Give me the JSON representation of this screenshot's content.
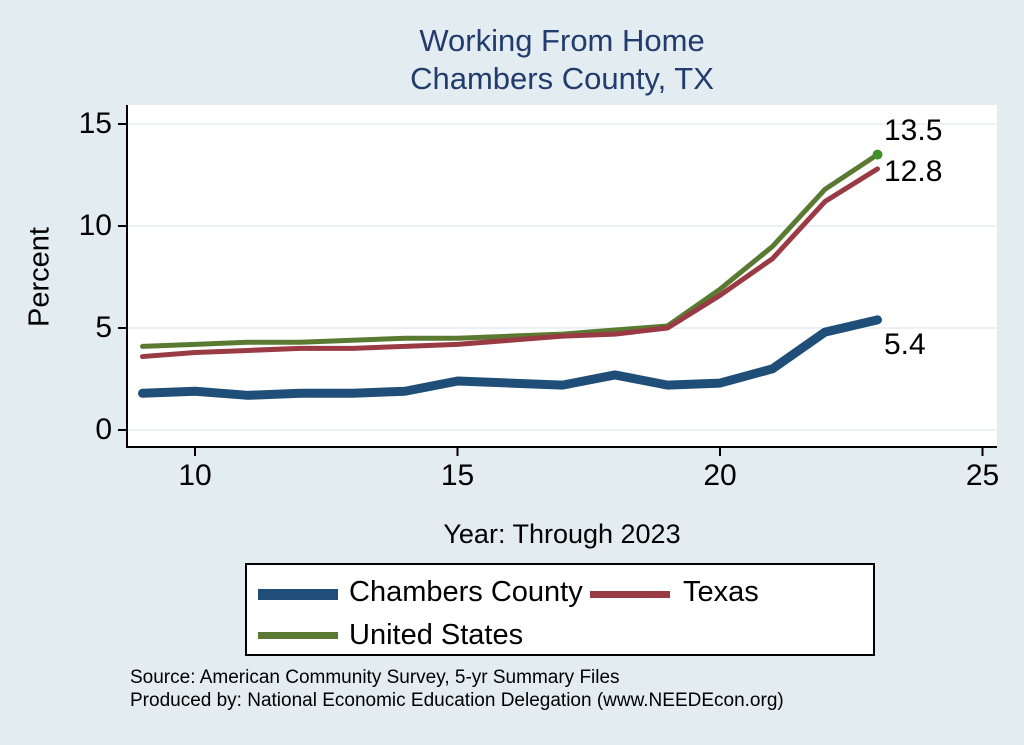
{
  "chart_data": {
    "type": "line",
    "title": "Working From Home",
    "subtitle": "Chambers County, TX",
    "xlabel": "Year: Through 2023",
    "ylabel": "Percent",
    "x": [
      9,
      10,
      11,
      12,
      13,
      14,
      15,
      16,
      17,
      18,
      19,
      20,
      21,
      22,
      23
    ],
    "series": [
      {
        "name": "Chambers County",
        "color": "#1f4e79",
        "line_width": 9,
        "values": [
          1.8,
          1.9,
          1.7,
          1.8,
          1.8,
          1.9,
          2.4,
          2.3,
          2.2,
          2.7,
          2.2,
          2.3,
          3.0,
          4.8,
          5.4
        ],
        "end_label": "5.4"
      },
      {
        "name": "Texas",
        "color": "#9a3a44",
        "line_width": 5,
        "values": [
          3.6,
          3.8,
          3.9,
          4.0,
          4.0,
          4.1,
          4.2,
          4.4,
          4.6,
          4.7,
          5.0,
          6.6,
          8.4,
          11.2,
          12.8
        ],
        "end_label": "12.8"
      },
      {
        "name": "United States",
        "color": "#5a7a32",
        "line_width": 5,
        "values": [
          4.1,
          4.2,
          4.3,
          4.3,
          4.4,
          4.5,
          4.5,
          4.6,
          4.7,
          4.9,
          5.1,
          6.9,
          9.0,
          11.8,
          13.5
        ],
        "end_label": "13.5",
        "end_marker_color": "#41902c"
      }
    ],
    "xticks": [
      "10",
      "15",
      "20",
      "25"
    ],
    "xtick_values": [
      10,
      15,
      20,
      25
    ],
    "yticks": [
      "0",
      "5",
      "10",
      "15"
    ],
    "ytick_values": [
      0,
      5,
      10,
      15
    ],
    "xlim": [
      8.7,
      25.3
    ],
    "ylim": [
      -0.8,
      15.9
    ],
    "grid": "horizontal",
    "legend_position": "bottom"
  },
  "footer": {
    "source": "Source: American Community Survey, 5-yr Summary Files",
    "produced_by": "Produced by: National Economic Education Delegation (www.NEEDEcon.org)"
  },
  "colors": {
    "background": "#e3ecf1",
    "plot_background": "#ffffff",
    "gridline": "#e3edf3",
    "axis": "#000000",
    "title_text": "#223c6d",
    "text": "#000000"
  }
}
